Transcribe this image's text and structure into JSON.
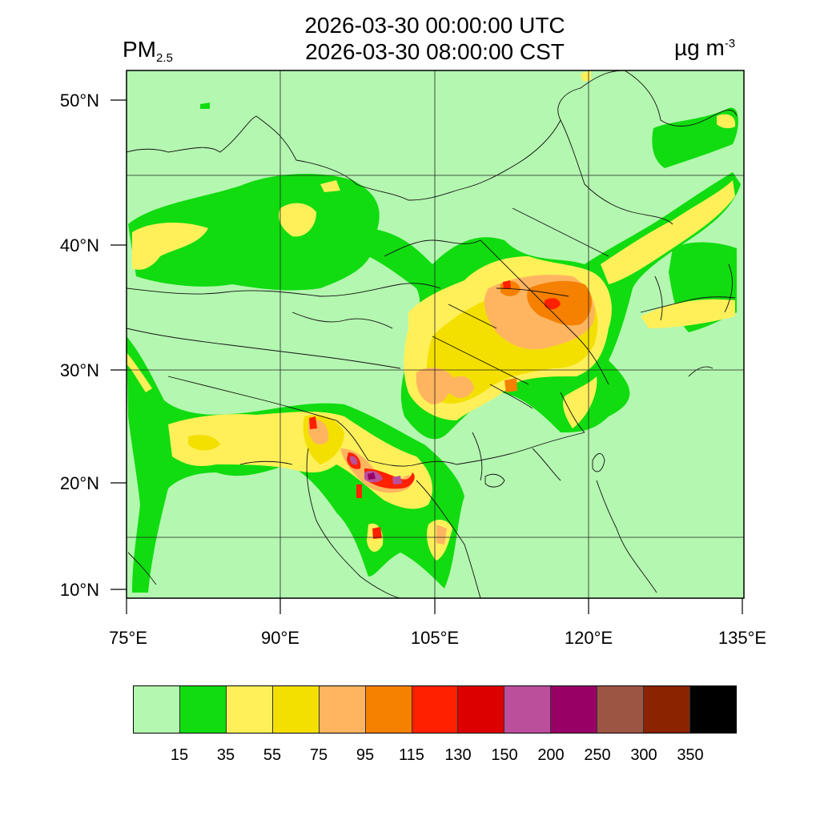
{
  "header": {
    "utc_time": "2026-03-30 00:00:00 UTC",
    "local_time": "2026-03-30 08:00:00 CST",
    "variable": "PM",
    "variable_sub": "2.5",
    "unit_base": "µg m",
    "unit_exp": "-3"
  },
  "axes": {
    "lat_labels": [
      "50°N",
      "40°N",
      "30°N",
      "20°N",
      "10°N"
    ],
    "lon_labels": [
      "75°E",
      "90°E",
      "105°E",
      "120°E",
      "135°E"
    ]
  },
  "colorbar": {
    "colors": [
      "#b4f7b0",
      "#10dc10",
      "#fff05a",
      "#f3e000",
      "#ffb560",
      "#f68000",
      "#ff2000",
      "#dc0000",
      "#bb4f9c",
      "#990066",
      "#9d5543",
      "#8b2300",
      "#000000"
    ],
    "ticks": [
      "15",
      "35",
      "55",
      "75",
      "95",
      "115",
      "130",
      "150",
      "200",
      "250",
      "300",
      "350"
    ]
  },
  "map": {
    "background_color": "#b4f7b0",
    "plume_colors": {
      "green": "#10dc10",
      "light_yellow": "#fff05a",
      "yellow": "#f3e000",
      "light_orange": "#ffb560",
      "orange": "#f68000",
      "red": "#ff2000",
      "dark_red": "#dc0000",
      "pink": "#bb4f9c",
      "purple": "#990066"
    }
  }
}
